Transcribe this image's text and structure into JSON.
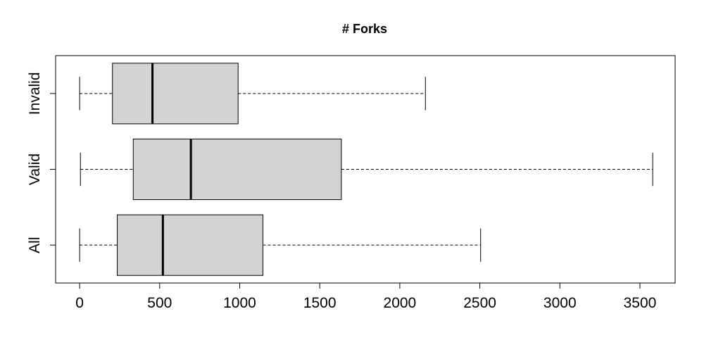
{
  "chart_data": {
    "type": "boxplot",
    "orientation": "horizontal",
    "title": "# Forks",
    "xlabel": "",
    "ylabel": "",
    "xlim": [
      -150,
      3720
    ],
    "x_ticks": [
      0,
      500,
      1000,
      1500,
      2000,
      2500,
      3000,
      3500
    ],
    "x_tick_labels": [
      "0",
      "500",
      "1000",
      "1500",
      "2000",
      "2500",
      "3000",
      "3500"
    ],
    "categories": [
      "All",
      "Valid",
      "Invalid"
    ],
    "box_fill": "#d3d3d3",
    "series": [
      {
        "category": "All",
        "min": 0,
        "q1": 235,
        "median": 520,
        "q3": 1145,
        "max": 2505
      },
      {
        "category": "Valid",
        "min": 5,
        "q1": 335,
        "median": 695,
        "q3": 1635,
        "max": 3580
      },
      {
        "category": "Invalid",
        "min": 0,
        "q1": 205,
        "median": 455,
        "q3": 990,
        "max": 2160
      }
    ]
  }
}
